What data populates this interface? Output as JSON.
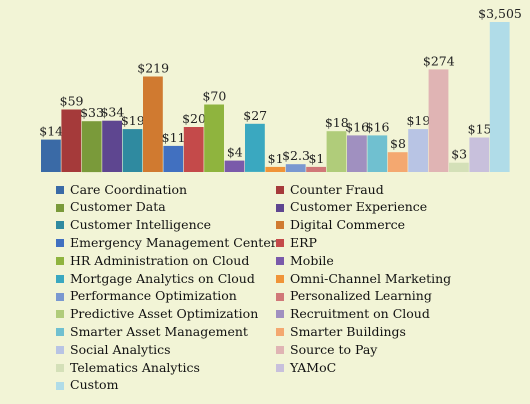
{
  "chart_data": {
    "type": "bar",
    "series": [
      {
        "name": "Care Coordination",
        "value": 14,
        "label": "$14",
        "color": "#3a6aa6"
      },
      {
        "name": "Counter Fraud",
        "value": 59,
        "label": "$59",
        "color": "#a53a3a"
      },
      {
        "name": "Customer Data",
        "value": 33,
        "label": "$33",
        "color": "#7a9a3a"
      },
      {
        "name": "Customer Experience",
        "value": 34,
        "label": "$34",
        "color": "#5e4690"
      },
      {
        "name": "Customer Intelligence",
        "value": 19,
        "label": "$19",
        "color": "#2f8aa0"
      },
      {
        "name": "Digital Commerce",
        "value": 219,
        "label": "$219",
        "color": "#d07a30"
      },
      {
        "name": "Emergency Management Center",
        "value": 11,
        "label": "$11",
        "color": "#4170c0"
      },
      {
        "name": "ERP",
        "value": 20,
        "label": "$20",
        "color": "#c44a4a"
      },
      {
        "name": "HR Administration on Cloud",
        "value": 70,
        "label": "$70",
        "color": "#8fb43e"
      },
      {
        "name": "Mobile",
        "value": 4,
        "label": "$4",
        "color": "#7a5aaa"
      },
      {
        "name": "Mortgage Analytics on Cloud",
        "value": 27,
        "label": "$27",
        "color": "#3aa8c0"
      },
      {
        "name": "Omni-Channel Marketing",
        "value": 1,
        "label": "$1",
        "color": "#f09438"
      },
      {
        "name": "Performance Optimization",
        "value": 2.3,
        "label": "$2.3",
        "color": "#7a98d0"
      },
      {
        "name": "Personalized Learning",
        "value": 1,
        "label": "$1",
        "color": "#d07878"
      },
      {
        "name": "Predictive Asset Optimization",
        "value": 18,
        "label": "$18",
        "color": "#b0cc7a"
      },
      {
        "name": "Recruitment on Cloud",
        "value": 16,
        "label": "$16",
        "color": "#a090c0"
      },
      {
        "name": "Smarter Asset Management",
        "value": 16,
        "label": "$16",
        "color": "#70c0d0"
      },
      {
        "name": "Smarter Buildings",
        "value": 8,
        "label": "$8",
        "color": "#f4a870"
      },
      {
        "name": "Social Analytics",
        "value": 19,
        "label": "$19",
        "color": "#b8c4e4"
      },
      {
        "name": "Source to Pay",
        "value": 274,
        "label": "$274",
        "color": "#e0b4b4"
      },
      {
        "name": "Telematics Analytics",
        "value": 3,
        "label": "$3",
        "color": "#d4e0b8"
      },
      {
        "name": "YAMoC",
        "value": 15,
        "label": "$15",
        "color": "#c8c0dc"
      },
      {
        "name": "Custom",
        "value": 3505,
        "label": "$3,505",
        "color": "#b0dce8"
      }
    ]
  }
}
